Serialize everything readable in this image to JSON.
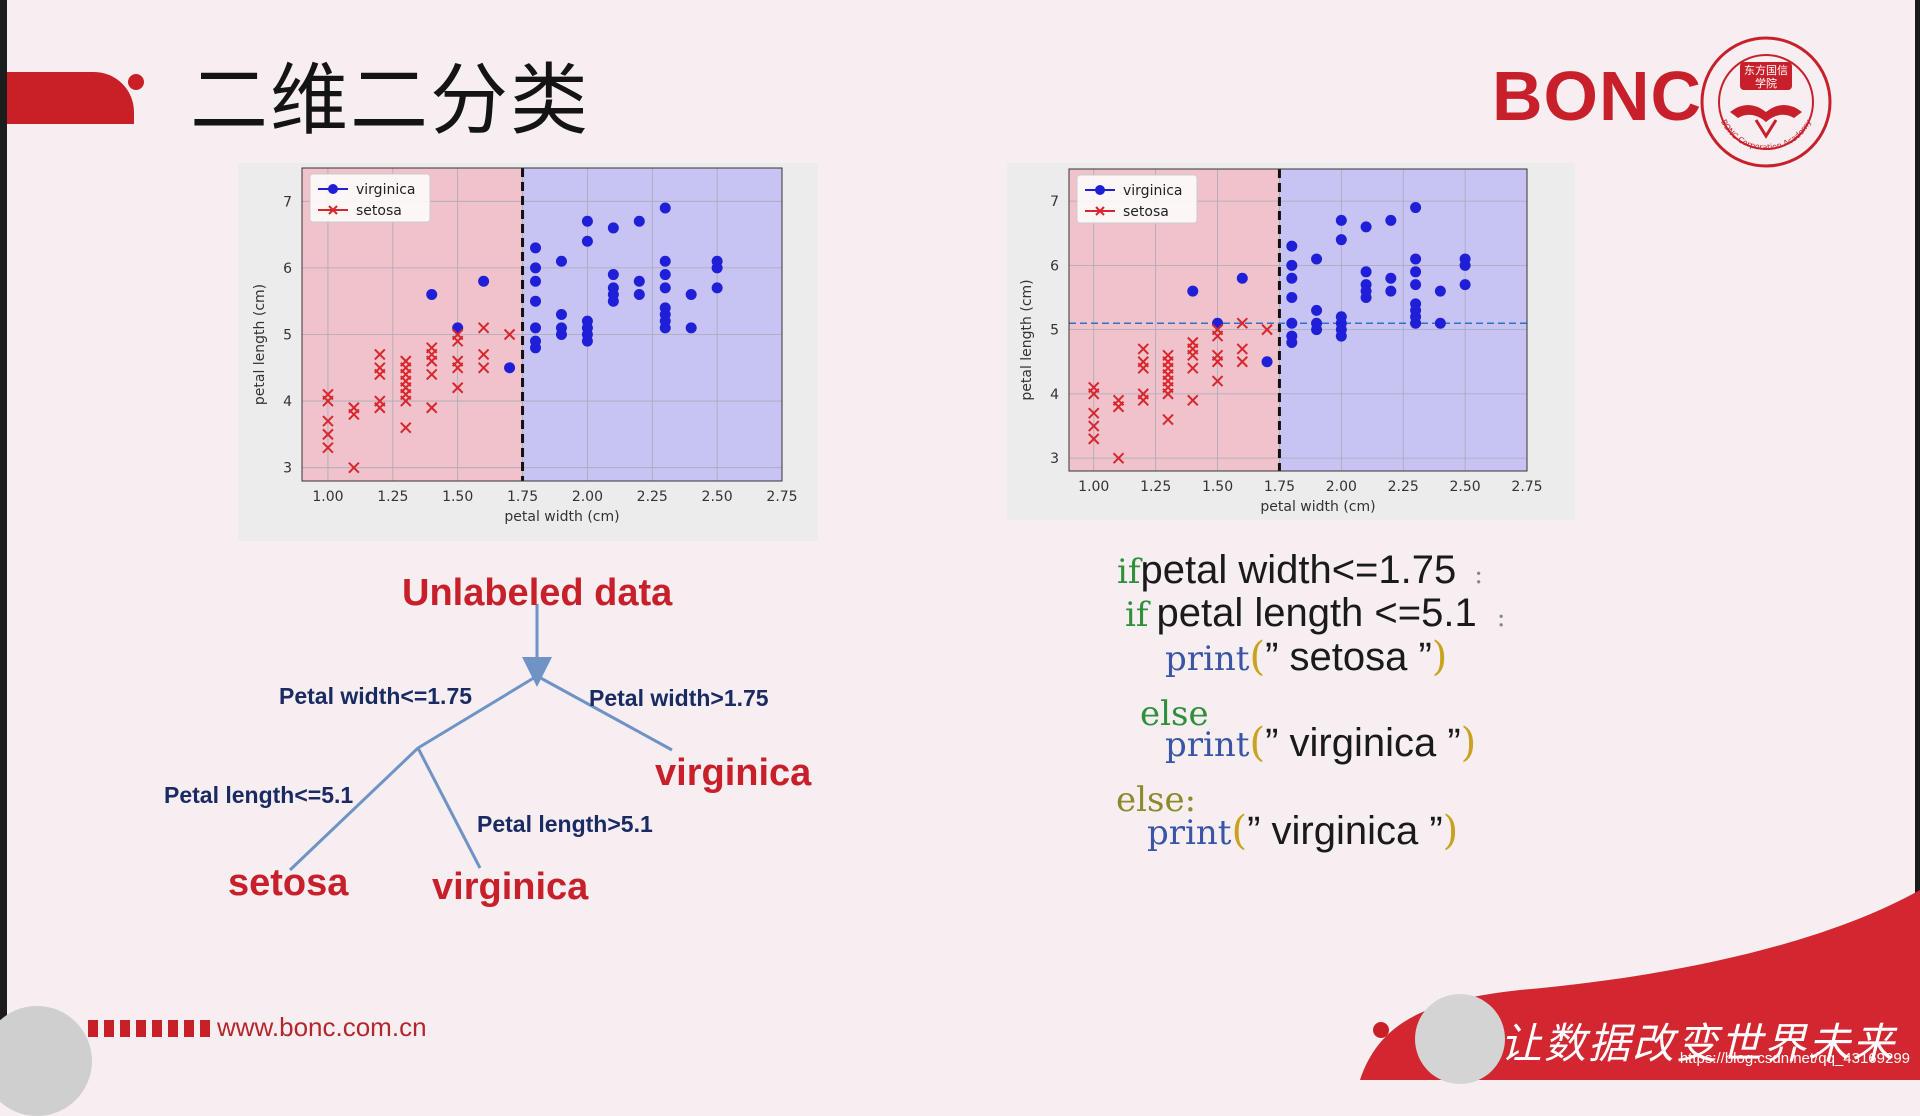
{
  "slide": {
    "title": "二维二分类",
    "logo_text": "BONC",
    "seal_texts": [
      "东方国信",
      "学院",
      "BONC Corporation Academy"
    ],
    "footer_url": "www.bonc.com.cn",
    "slogan": "让数据改变世界未来",
    "watermark": "https://blog.csdn.net/qq_43169299"
  },
  "colors": {
    "brand_red": "#c91f26",
    "region_setosa": "#f0c2cb",
    "region_virginica": "#c7c4f4",
    "virginica_points": "#1f1fd8",
    "setosa_points": "#d8262c"
  },
  "chart_data": [
    {
      "type": "scatter",
      "title": "",
      "xlabel": "petal width (cm)",
      "ylabel": "petal length (cm)",
      "xlim": [
        0.9,
        2.75
      ],
      "ylim": [
        2.8,
        7.5
      ],
      "xticks": [
        "1.00",
        "1.25",
        "1.50",
        "1.75",
        "2.00",
        "2.25",
        "2.50",
        "2.75"
      ],
      "yticks": [
        "3",
        "4",
        "5",
        "6",
        "7"
      ],
      "grid": true,
      "legend_position": "top-left",
      "vertical_split": 1.75,
      "horizontal_split": null,
      "series": [
        {
          "name": "virginica",
          "marker": "circle",
          "points": [
            [
              1.4,
              5.6
            ],
            [
              1.5,
              5.1
            ],
            [
              1.6,
              5.8
            ],
            [
              1.7,
              4.5
            ],
            [
              1.8,
              4.8
            ],
            [
              1.8,
              4.9
            ],
            [
              1.8,
              5.1
            ],
            [
              1.8,
              5.5
            ],
            [
              1.8,
              5.8
            ],
            [
              1.8,
              6.0
            ],
            [
              1.8,
              6.3
            ],
            [
              1.9,
              5.0
            ],
            [
              1.9,
              5.1
            ],
            [
              1.9,
              5.3
            ],
            [
              1.9,
              6.1
            ],
            [
              2.0,
              4.9
            ],
            [
              2.0,
              5.0
            ],
            [
              2.0,
              5.1
            ],
            [
              2.0,
              5.2
            ],
            [
              2.0,
              6.4
            ],
            [
              2.0,
              6.7
            ],
            [
              2.1,
              5.5
            ],
            [
              2.1,
              5.6
            ],
            [
              2.1,
              5.7
            ],
            [
              2.1,
              5.9
            ],
            [
              2.1,
              6.6
            ],
            [
              2.2,
              5.6
            ],
            [
              2.2,
              5.8
            ],
            [
              2.2,
              6.7
            ],
            [
              2.3,
              5.1
            ],
            [
              2.3,
              5.2
            ],
            [
              2.3,
              5.3
            ],
            [
              2.3,
              5.4
            ],
            [
              2.3,
              5.7
            ],
            [
              2.3,
              5.9
            ],
            [
              2.3,
              6.1
            ],
            [
              2.3,
              6.9
            ],
            [
              2.4,
              5.1
            ],
            [
              2.4,
              5.6
            ],
            [
              2.5,
              5.7
            ],
            [
              2.5,
              6.0
            ],
            [
              2.5,
              6.1
            ]
          ]
        },
        {
          "name": "setosa",
          "marker": "x",
          "points": [
            [
              1.0,
              3.3
            ],
            [
              1.0,
              3.5
            ],
            [
              1.0,
              3.7
            ],
            [
              1.0,
              4.0
            ],
            [
              1.0,
              4.1
            ],
            [
              1.1,
              3.0
            ],
            [
              1.1,
              3.8
            ],
            [
              1.1,
              3.9
            ],
            [
              1.2,
              3.9
            ],
            [
              1.2,
              4.0
            ],
            [
              1.2,
              4.4
            ],
            [
              1.2,
              4.5
            ],
            [
              1.2,
              4.7
            ],
            [
              1.3,
              3.6
            ],
            [
              1.3,
              4.0
            ],
            [
              1.3,
              4.1
            ],
            [
              1.3,
              4.2
            ],
            [
              1.3,
              4.3
            ],
            [
              1.3,
              4.4
            ],
            [
              1.3,
              4.5
            ],
            [
              1.3,
              4.6
            ],
            [
              1.4,
              3.9
            ],
            [
              1.4,
              4.4
            ],
            [
              1.4,
              4.6
            ],
            [
              1.4,
              4.7
            ],
            [
              1.4,
              4.8
            ],
            [
              1.5,
              4.2
            ],
            [
              1.5,
              4.5
            ],
            [
              1.5,
              4.6
            ],
            [
              1.5,
              4.9
            ],
            [
              1.5,
              5.0
            ],
            [
              1.6,
              4.5
            ],
            [
              1.6,
              4.7
            ],
            [
              1.6,
              5.1
            ],
            [
              1.7,
              5.0
            ]
          ]
        }
      ]
    },
    {
      "type": "scatter",
      "title": "",
      "xlabel": "petal width (cm)",
      "ylabel": "petal length (cm)",
      "xlim": [
        0.9,
        2.75
      ],
      "ylim": [
        2.8,
        7.5
      ],
      "xticks": [
        "1.00",
        "1.25",
        "1.50",
        "1.75",
        "2.00",
        "2.25",
        "2.50",
        "2.75"
      ],
      "yticks": [
        "3",
        "4",
        "5",
        "6",
        "7"
      ],
      "grid": true,
      "legend_position": "top-left",
      "vertical_split": 1.75,
      "horizontal_split": 5.1,
      "series": [
        {
          "name": "virginica",
          "marker": "circle",
          "points": [
            [
              1.4,
              5.6
            ],
            [
              1.5,
              5.1
            ],
            [
              1.6,
              5.8
            ],
            [
              1.7,
              4.5
            ],
            [
              1.8,
              4.8
            ],
            [
              1.8,
              4.9
            ],
            [
              1.8,
              5.1
            ],
            [
              1.8,
              5.5
            ],
            [
              1.8,
              5.8
            ],
            [
              1.8,
              6.0
            ],
            [
              1.8,
              6.3
            ],
            [
              1.9,
              5.0
            ],
            [
              1.9,
              5.1
            ],
            [
              1.9,
              5.3
            ],
            [
              1.9,
              6.1
            ],
            [
              2.0,
              4.9
            ],
            [
              2.0,
              5.0
            ],
            [
              2.0,
              5.1
            ],
            [
              2.0,
              5.2
            ],
            [
              2.0,
              6.4
            ],
            [
              2.0,
              6.7
            ],
            [
              2.1,
              5.5
            ],
            [
              2.1,
              5.6
            ],
            [
              2.1,
              5.7
            ],
            [
              2.1,
              5.9
            ],
            [
              2.1,
              6.6
            ],
            [
              2.2,
              5.6
            ],
            [
              2.2,
              5.8
            ],
            [
              2.2,
              6.7
            ],
            [
              2.3,
              5.1
            ],
            [
              2.3,
              5.2
            ],
            [
              2.3,
              5.3
            ],
            [
              2.3,
              5.4
            ],
            [
              2.3,
              5.7
            ],
            [
              2.3,
              5.9
            ],
            [
              2.3,
              6.1
            ],
            [
              2.3,
              6.9
            ],
            [
              2.4,
              5.1
            ],
            [
              2.4,
              5.6
            ],
            [
              2.5,
              5.7
            ],
            [
              2.5,
              6.0
            ],
            [
              2.5,
              6.1
            ]
          ]
        },
        {
          "name": "setosa",
          "marker": "x",
          "points": [
            [
              1.0,
              3.3
            ],
            [
              1.0,
              3.5
            ],
            [
              1.0,
              3.7
            ],
            [
              1.0,
              4.0
            ],
            [
              1.0,
              4.1
            ],
            [
              1.1,
              3.0
            ],
            [
              1.1,
              3.8
            ],
            [
              1.1,
              3.9
            ],
            [
              1.2,
              3.9
            ],
            [
              1.2,
              4.0
            ],
            [
              1.2,
              4.4
            ],
            [
              1.2,
              4.5
            ],
            [
              1.2,
              4.7
            ],
            [
              1.3,
              3.6
            ],
            [
              1.3,
              4.0
            ],
            [
              1.3,
              4.1
            ],
            [
              1.3,
              4.2
            ],
            [
              1.3,
              4.3
            ],
            [
              1.3,
              4.4
            ],
            [
              1.3,
              4.5
            ],
            [
              1.3,
              4.6
            ],
            [
              1.4,
              3.9
            ],
            [
              1.4,
              4.4
            ],
            [
              1.4,
              4.6
            ],
            [
              1.4,
              4.7
            ],
            [
              1.4,
              4.8
            ],
            [
              1.5,
              4.2
            ],
            [
              1.5,
              4.5
            ],
            [
              1.5,
              4.6
            ],
            [
              1.5,
              4.9
            ],
            [
              1.5,
              5.0
            ],
            [
              1.6,
              4.5
            ],
            [
              1.6,
              4.7
            ],
            [
              1.6,
              5.1
            ],
            [
              1.7,
              5.0
            ]
          ]
        }
      ]
    }
  ],
  "tree": {
    "root": "Unlabeled data",
    "edge_left": "Petal width<=1.75",
    "edge_right": "Petal width>1.75",
    "leaf_right": "virginica",
    "edge_left_left": "Petal length<=5.1",
    "edge_left_right": "Petal length>5.1",
    "leaf_left_left": "setosa",
    "leaf_left_right": "virginica"
  },
  "code": {
    "line1_kw": "if",
    "line1_text": "petal width<=1.75",
    "line1_end": ":",
    "line2_kw": "if",
    "line2_text": "petal length <=5.1",
    "line2_end": ":",
    "line3_kw": "print",
    "line3_open": "(",
    "line3_text": "” setosa ”",
    "line3_close": ")",
    "line4_kw": "else",
    "line5_kw": "print",
    "line5_open": "(",
    "line5_text": "” virginica ”",
    "line5_close": ")",
    "line6_kw": "else:",
    "line7_kw": "print",
    "line7_open": "(",
    "line7_text": "” virginica ”",
    "line7_close": ")"
  }
}
